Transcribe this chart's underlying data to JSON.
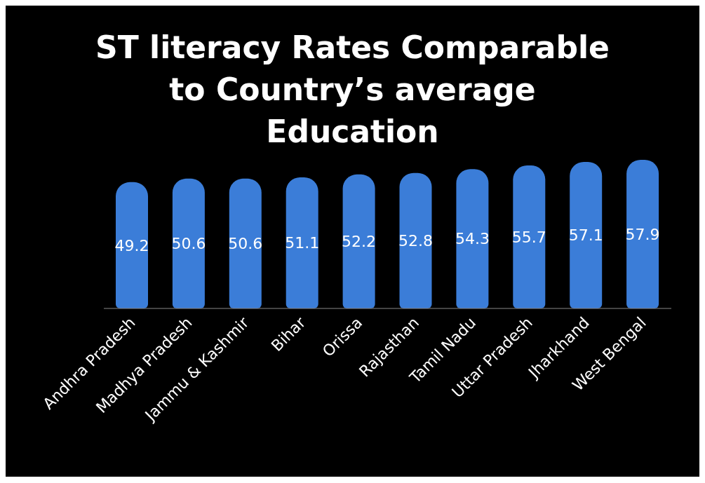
{
  "chart_data": {
    "type": "bar",
    "title": "ST literacy Rates Comparable to Country’s average Education",
    "categories": [
      "Andhra Pradesh",
      "Madhya Pradesh",
      "Jammu & Kashmir",
      "Bihar",
      "Orissa",
      "Rajasthan",
      "Tamil Nadu",
      "Uttar Pradesh",
      "Jharkhand",
      "West Bengal"
    ],
    "values": [
      49.2,
      50.6,
      50.6,
      51.1,
      52.2,
      52.8,
      54.3,
      55.7,
      57.1,
      57.9
    ],
    "color": "#3b7dd8",
    "data_labels": true
  }
}
